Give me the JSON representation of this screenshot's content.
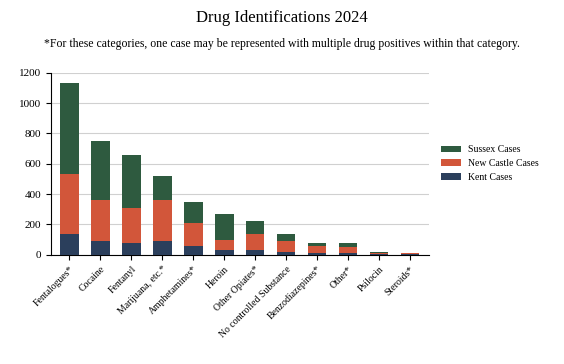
{
  "chart_data": {
    "type": "bar",
    "title": "Drug Identifications 2024",
    "subtitle": "*For these categories, one case may be represented with multiple drug positives within that category.",
    "categories": [
      "Fentalogues*",
      "Cocaine",
      "Fentanyl",
      "Marijuana, etc.*",
      "Amphetamines*",
      "Heroin",
      "Other Opiates*",
      "No controlled Substance",
      "Benzodiazepines*",
      "Other*",
      "Psilocin",
      "Steroids*"
    ],
    "series": [
      {
        "name": "Kent Cases",
        "color": "#2b3f5c",
        "values": [
          140,
          90,
          80,
          90,
          60,
          30,
          30,
          20,
          10,
          10,
          3,
          3
        ]
      },
      {
        "name": "New Castle Cases",
        "color": "#d2563a",
        "values": [
          390,
          270,
          230,
          270,
          150,
          70,
          110,
          70,
          50,
          40,
          10,
          7
        ]
      },
      {
        "name": "Sussex Cases",
        "color": "#2e5a3f",
        "values": [
          600,
          390,
          350,
          160,
          140,
          170,
          80,
          50,
          20,
          25,
          5,
          5
        ]
      }
    ],
    "stacked": true,
    "ylim": [
      0,
      1200
    ],
    "yticks": [
      0,
      200,
      400,
      600,
      800,
      1000,
      1200
    ],
    "grid": true,
    "legend": "right"
  }
}
